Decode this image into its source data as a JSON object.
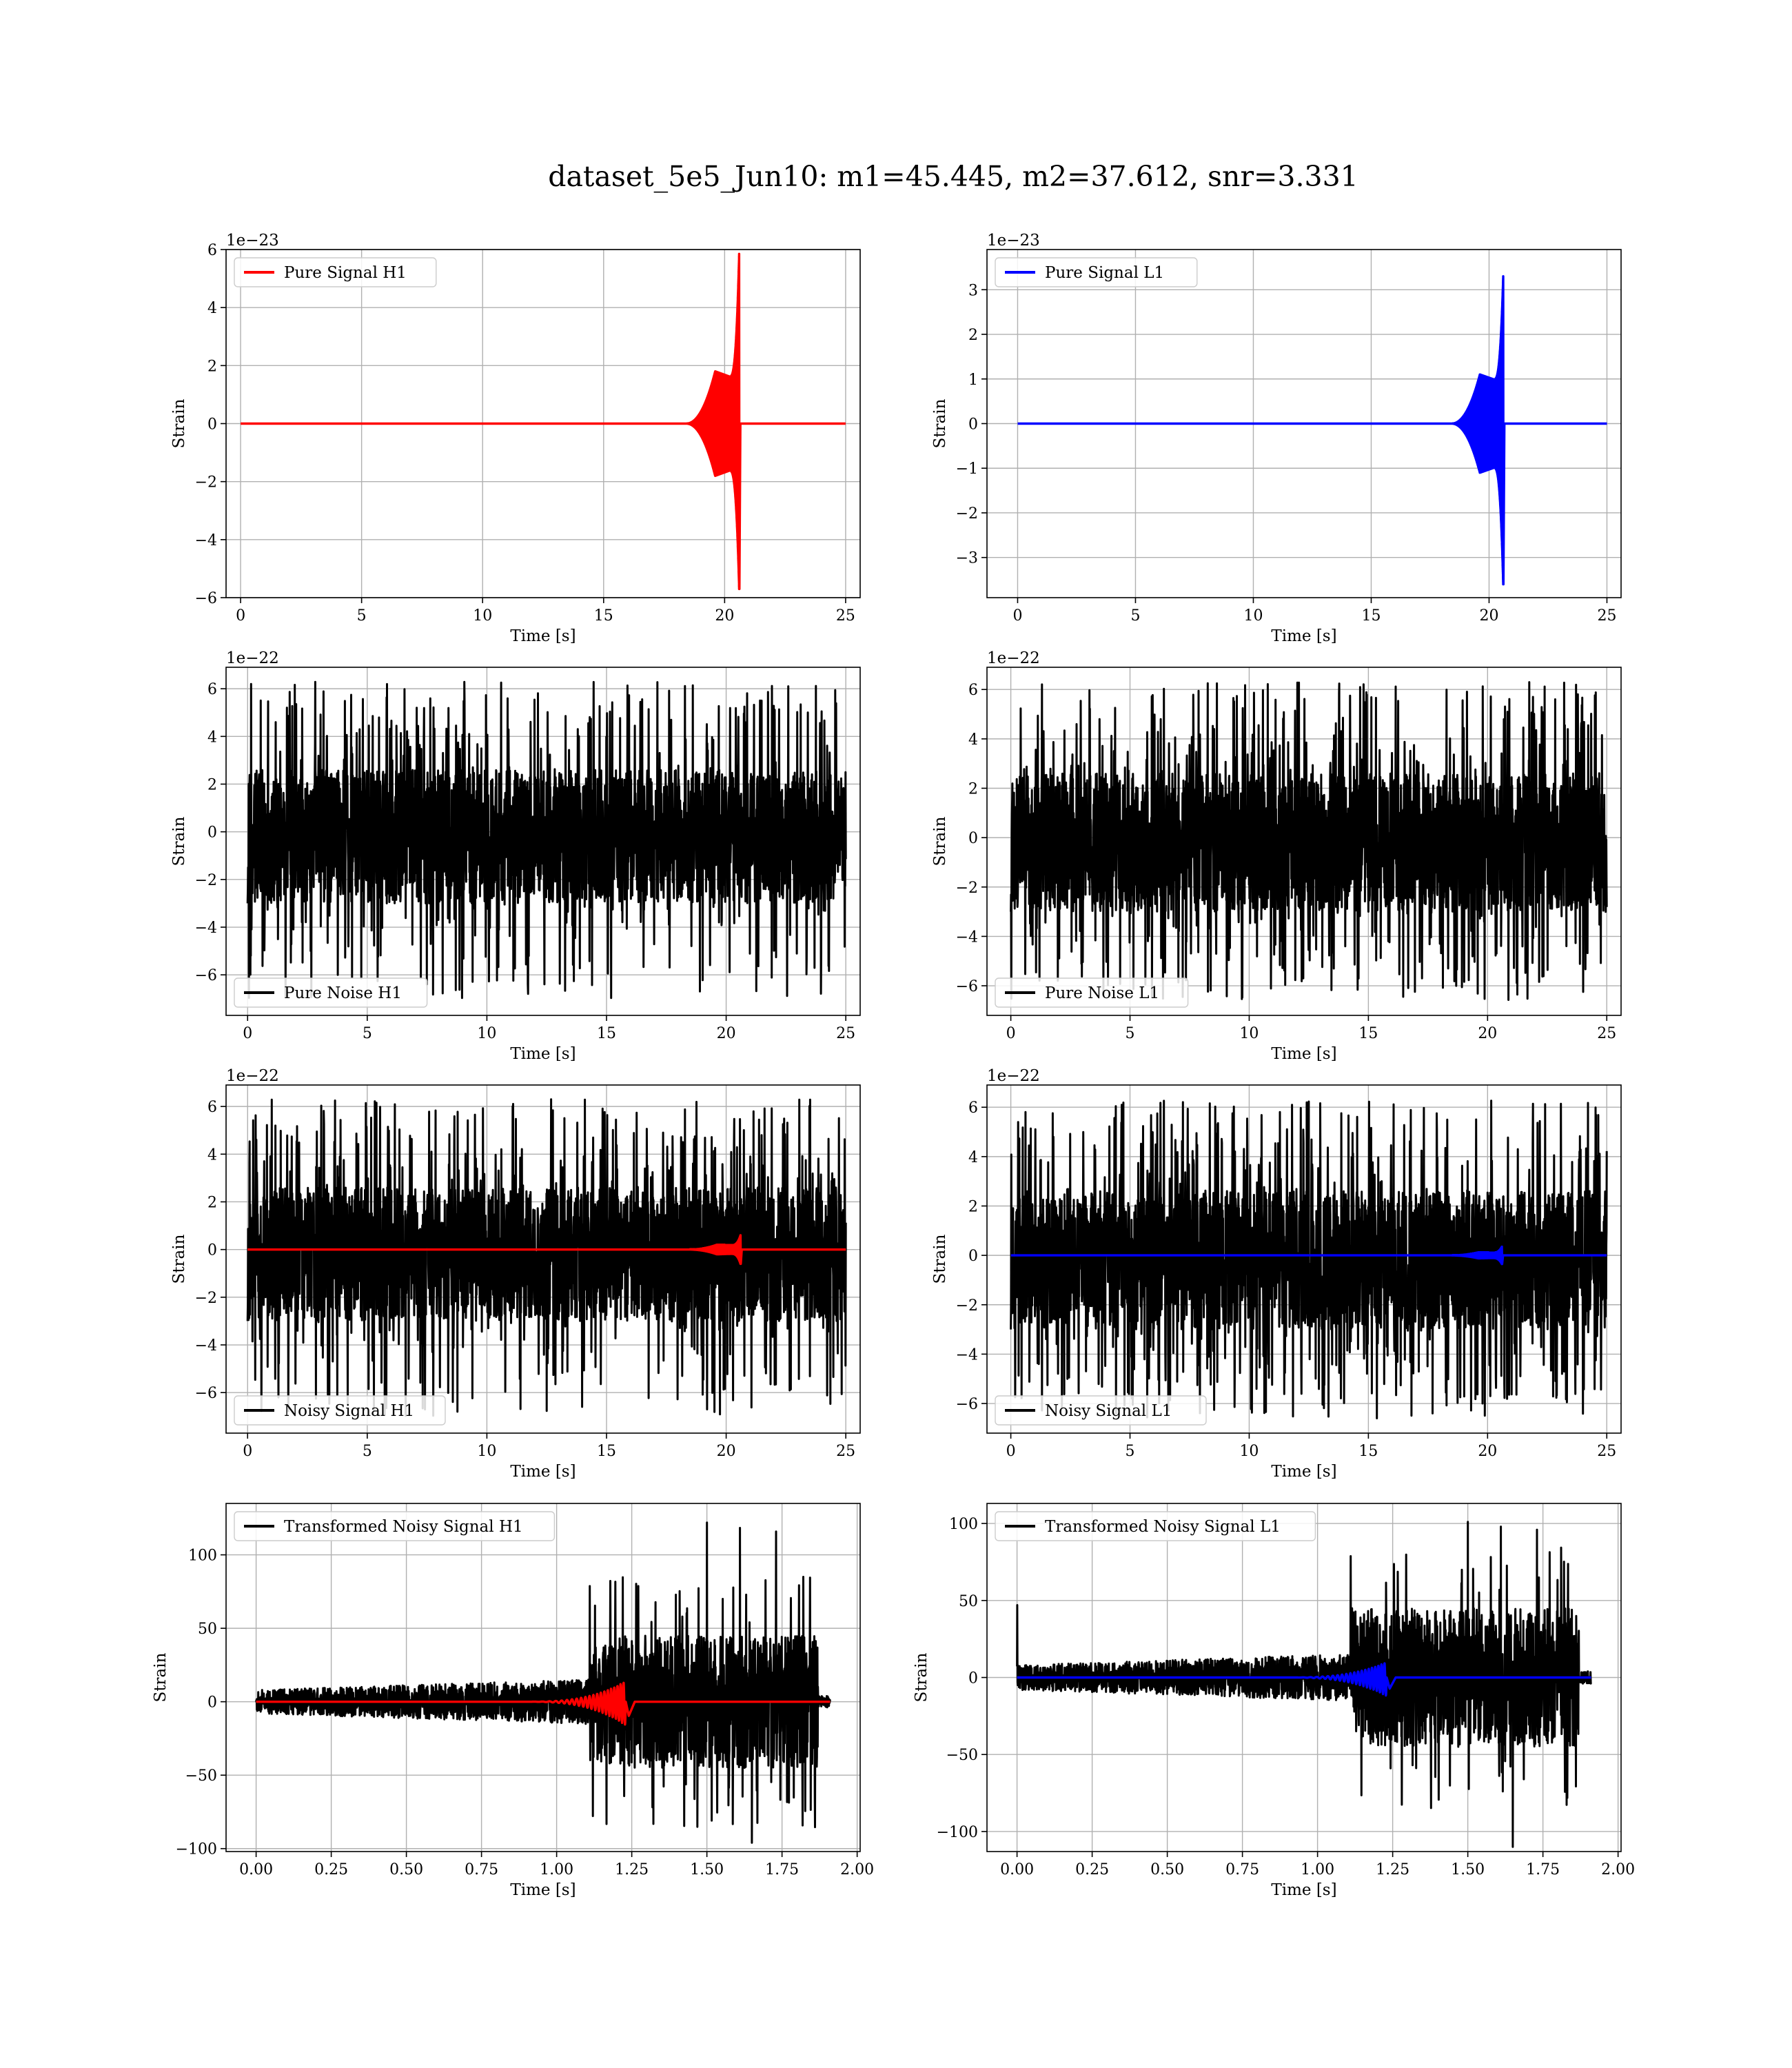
{
  "figure": {
    "title": "dataset_5e5_Jun10: m1=45.445, m2=37.612, snr=3.331"
  },
  "colors": {
    "h1": "#ff0000",
    "l1": "#0000ff",
    "noise": "#000000",
    "grid": "#b0b0b0",
    "background": "#ffffff"
  },
  "chart_data": [
    {
      "id": "pure-signal-h1",
      "type": "line",
      "xlabel": "Time [s]",
      "ylabel": "Strain",
      "offset_text": "1e−23",
      "xlim": [
        -0.6,
        25.6
      ],
      "ylim": [
        -6.0,
        6.0
      ],
      "xticks": [
        0,
        5,
        10,
        15,
        20,
        25
      ],
      "xticklabels": [
        "0",
        "5",
        "10",
        "15",
        "20",
        "25"
      ],
      "yticks": [
        -6,
        -4,
        -2,
        0,
        2,
        4,
        6
      ],
      "yticklabels": [
        "−6",
        "−4",
        "−2",
        "0",
        "2",
        "4",
        "6"
      ],
      "grid": true,
      "legend_loc": "upper-left",
      "legend": [
        "Pure Signal H1"
      ],
      "series": [
        {
          "name": "Pure Signal H1",
          "kind": "chirp",
          "color_key": "h1",
          "x_range": [
            0,
            25
          ],
          "t_merger": 20.6,
          "peak": 5.85,
          "trough": -5.7,
          "plateau": 1.8
        }
      ]
    },
    {
      "id": "pure-signal-l1",
      "type": "line",
      "xlabel": "Time [s]",
      "ylabel": "Strain",
      "offset_text": "1e−23",
      "xlim": [
        -1.3,
        25.6
      ],
      "ylim": [
        -3.9,
        3.9
      ],
      "xticks": [
        0,
        5,
        10,
        15,
        20,
        25
      ],
      "xticklabels": [
        "0",
        "5",
        "10",
        "15",
        "20",
        "25"
      ],
      "yticks": [
        -3,
        -2,
        -1,
        0,
        1,
        2,
        3
      ],
      "yticklabels": [
        "−3",
        "−2",
        "−1",
        "0",
        "1",
        "2",
        "3"
      ],
      "grid": true,
      "legend_loc": "upper-left",
      "legend": [
        "Pure Signal L1"
      ],
      "series": [
        {
          "name": "Pure Signal L1",
          "kind": "chirp",
          "color_key": "l1",
          "x_range": [
            0,
            25
          ],
          "t_merger": 20.6,
          "peak": 3.3,
          "trough": -3.6,
          "plateau": 1.1
        }
      ]
    },
    {
      "id": "pure-noise-h1",
      "type": "line",
      "xlabel": "Time [s]",
      "ylabel": "Strain",
      "offset_text": "1e−22",
      "xlim": [
        -0.9,
        25.6
      ],
      "ylim": [
        -7.7,
        6.9
      ],
      "xticks": [
        0,
        5,
        10,
        15,
        20,
        25
      ],
      "xticklabels": [
        "0",
        "5",
        "10",
        "15",
        "20",
        "25"
      ],
      "yticks": [
        -6,
        -4,
        -2,
        0,
        2,
        4,
        6
      ],
      "yticklabels": [
        "−6",
        "−4",
        "−2",
        "0",
        "2",
        "4",
        "6"
      ],
      "grid": true,
      "legend_loc": "lower-left",
      "legend": [
        "Pure Noise H1"
      ],
      "series": [
        {
          "name": "Pure Noise H1",
          "kind": "noise",
          "color_key": "noise",
          "x_range": [
            0,
            25
          ],
          "band": [
            -3.0,
            2.6
          ],
          "spike_max": 6.3,
          "spike_min": -7.0
        }
      ]
    },
    {
      "id": "pure-noise-l1",
      "type": "line",
      "xlabel": "Time [s]",
      "ylabel": "Strain",
      "offset_text": "1e−22",
      "xlim": [
        -1.0,
        25.6
      ],
      "ylim": [
        -7.2,
        6.9
      ],
      "xticks": [
        0,
        5,
        10,
        15,
        20,
        25
      ],
      "xticklabels": [
        "0",
        "5",
        "10",
        "15",
        "20",
        "25"
      ],
      "yticks": [
        -6,
        -4,
        -2,
        0,
        2,
        4,
        6
      ],
      "yticklabels": [
        "−6",
        "−4",
        "−2",
        "0",
        "2",
        "4",
        "6"
      ],
      "grid": true,
      "legend_loc": "lower-left",
      "legend": [
        "Pure Noise L1"
      ],
      "series": [
        {
          "name": "Pure Noise L1",
          "kind": "noise",
          "color_key": "noise",
          "x_range": [
            0,
            25
          ],
          "band": [
            -3.0,
            2.6
          ],
          "spike_max": 6.3,
          "spike_min": -6.6
        }
      ]
    },
    {
      "id": "noisy-signal-h1",
      "type": "line",
      "xlabel": "Time [s]",
      "ylabel": "Strain",
      "offset_text": "1e−22",
      "xlim": [
        -0.9,
        25.6
      ],
      "ylim": [
        -7.7,
        6.9
      ],
      "xticks": [
        0,
        5,
        10,
        15,
        20,
        25
      ],
      "xticklabels": [
        "0",
        "5",
        "10",
        "15",
        "20",
        "25"
      ],
      "yticks": [
        -6,
        -4,
        -2,
        0,
        2,
        4,
        6
      ],
      "yticklabels": [
        "−6",
        "−4",
        "−2",
        "0",
        "2",
        "4",
        "6"
      ],
      "grid": true,
      "legend_loc": "lower-left",
      "legend": [
        "Noisy Signal H1"
      ],
      "series": [
        {
          "name": "Noisy Signal H1",
          "kind": "noise",
          "color_key": "noise",
          "x_range": [
            0,
            25
          ],
          "band": [
            -3.0,
            2.6
          ],
          "spike_max": 6.3,
          "spike_min": -7.0
        },
        {
          "name": "Pure Signal H1",
          "kind": "chirp",
          "color_key": "h1",
          "x_range": [
            0,
            25
          ],
          "t_merger": 20.6,
          "peak": 0.6,
          "trough": -0.6,
          "plateau": 0.2
        }
      ]
    },
    {
      "id": "noisy-signal-l1",
      "type": "line",
      "xlabel": "Time [s]",
      "ylabel": "Strain",
      "offset_text": "1e−22",
      "xlim": [
        -1.0,
        25.6
      ],
      "ylim": [
        -7.2,
        6.9
      ],
      "xticks": [
        0,
        5,
        10,
        15,
        20,
        25
      ],
      "xticklabels": [
        "0",
        "5",
        "10",
        "15",
        "20",
        "25"
      ],
      "yticks": [
        -6,
        -4,
        -2,
        0,
        2,
        4,
        6
      ],
      "yticklabels": [
        "−6",
        "−4",
        "−2",
        "0",
        "2",
        "4",
        "6"
      ],
      "grid": true,
      "legend_loc": "lower-left",
      "legend": [
        "Noisy Signal L1"
      ],
      "series": [
        {
          "name": "Noisy Signal L1",
          "kind": "noise",
          "color_key": "noise",
          "x_range": [
            0,
            25
          ],
          "band": [
            -3.0,
            2.6
          ],
          "spike_max": 6.3,
          "spike_min": -6.6
        },
        {
          "name": "Pure Signal L1",
          "kind": "chirp",
          "color_key": "l1",
          "x_range": [
            0,
            25
          ],
          "t_merger": 20.6,
          "peak": 0.35,
          "trough": -0.35,
          "plateau": 0.12
        }
      ]
    },
    {
      "id": "transformed-noisy-signal-h1",
      "type": "line",
      "xlabel": "Time [s]",
      "ylabel": "Strain",
      "offset_text": "",
      "xlim": [
        -0.1,
        2.01
      ],
      "ylim": [
        -102,
        135
      ],
      "xticks": [
        0,
        0.25,
        0.5,
        0.75,
        1.0,
        1.25,
        1.5,
        1.75,
        2.0
      ],
      "xticklabels": [
        "0.00",
        "0.25",
        "0.50",
        "0.75",
        "1.00",
        "1.25",
        "1.50",
        "1.75",
        "2.00"
      ],
      "yticks": [
        -100,
        -50,
        0,
        50,
        100
      ],
      "yticklabels": [
        "−100",
        "−50",
        "0",
        "50",
        "100"
      ],
      "grid": true,
      "legend_loc": "upper-left",
      "legend": [
        "Transformed Noisy Signal H1"
      ],
      "series": [
        {
          "name": "Transformed Noisy Signal H1",
          "kind": "whitened",
          "color_key": "noise",
          "x_range": [
            0,
            1.91
          ],
          "t_step": 1.11,
          "t_end": 1.87,
          "low_amp": 8,
          "high_amp": 45,
          "spike_max": 122,
          "spike_min": -96
        },
        {
          "name": "Pure Signal H1",
          "kind": "whitened-chirp",
          "color_key": "h1",
          "x_range": [
            0,
            1.91
          ],
          "t_merger": 1.23,
          "peak": 14,
          "trough": -16
        }
      ]
    },
    {
      "id": "transformed-noisy-signal-l1",
      "type": "line",
      "xlabel": "Time [s]",
      "ylabel": "Strain",
      "offset_text": "",
      "xlim": [
        -0.1,
        2.01
      ],
      "ylim": [
        -113,
        113
      ],
      "xticks": [
        0,
        0.25,
        0.5,
        0.75,
        1.0,
        1.25,
        1.5,
        1.75,
        2.0
      ],
      "xticklabels": [
        "0.00",
        "0.25",
        "0.50",
        "0.75",
        "1.00",
        "1.25",
        "1.50",
        "1.75",
        "2.00"
      ],
      "yticks": [
        -100,
        -50,
        0,
        50,
        100
      ],
      "yticklabels": [
        "−100",
        "−50",
        "0",
        "50",
        "100"
      ],
      "grid": true,
      "legend_loc": "upper-left",
      "legend": [
        "Transformed Noisy Signal L1"
      ],
      "series": [
        {
          "name": "Transformed Noisy Signal L1",
          "kind": "whitened",
          "color_key": "noise",
          "x_range": [
            0,
            1.91
          ],
          "t_step": 1.11,
          "t_end": 1.87,
          "low_amp": 8,
          "high_amp": 45,
          "spike_max": 101,
          "spike_min": -110,
          "start_spike": 47
        },
        {
          "name": "Pure Signal L1",
          "kind": "whitened-chirp",
          "color_key": "l1",
          "x_range": [
            0,
            1.91
          ],
          "t_merger": 1.23,
          "peak": 10,
          "trough": -12
        }
      ]
    }
  ]
}
